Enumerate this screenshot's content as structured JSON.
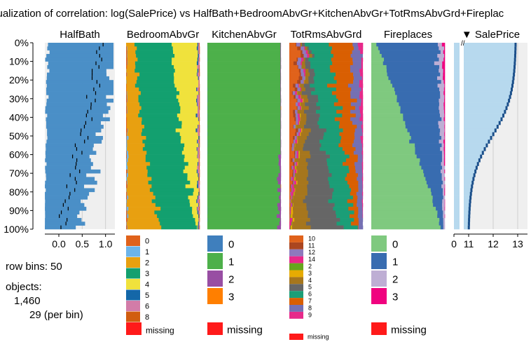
{
  "chart_data": {
    "type": "tableplot",
    "title": "sualization of correlation: log(SalePrice) vs HalfBath+BedroomAbvGr+KitchenAbvGr+TotRmsAbvGrd+Fireplac",
    "row_bins": 50,
    "objects": "1,460",
    "per_bin": "29 (per bin)",
    "row_bins_label": "row bins:",
    "objects_label": "objects:",
    "y_ticks": [
      "0%",
      "10%",
      "20%",
      "30%",
      "40%",
      "50%",
      "60%",
      "70%",
      "80%",
      "90%",
      "100%"
    ],
    "sort_column": "SalePrice",
    "sort_marker": "▼",
    "columns": [
      {
        "name": "HalfBath",
        "kind": "numeric",
        "x_ticks": [
          "0.0",
          "0.5",
          "1.0"
        ],
        "xlim": [
          -0.3,
          1.2
        ],
        "color": "#4a8fc7",
        "mean_top": 0.95,
        "mean_bottom": 0.08
      },
      {
        "name": "BedroomAbvGr",
        "kind": "categorical",
        "legend": [
          {
            "label": "0",
            "color": "#e0621b"
          },
          {
            "label": "1",
            "color": "#6cb4ea"
          },
          {
            "label": "2",
            "color": "#e8a010"
          },
          {
            "label": "3",
            "color": "#13a06f"
          },
          {
            "label": "4",
            "color": "#f0e23c"
          },
          {
            "label": "5",
            "color": "#1467a8"
          },
          {
            "label": "6",
            "color": "#d27ca8"
          },
          {
            "label": "8",
            "color": "#d15d10"
          }
        ],
        "missing_label": "missing"
      },
      {
        "name": "KitchenAbvGr",
        "kind": "categorical",
        "legend": [
          {
            "label": "0",
            "color": "#3f7fbd"
          },
          {
            "label": "1",
            "color": "#4db04a"
          },
          {
            "label": "2",
            "color": "#984ea3"
          },
          {
            "label": "3",
            "color": "#ff7f00"
          }
        ],
        "missing_label": "missing"
      },
      {
        "name": "TotRmsAbvGrd",
        "kind": "categorical",
        "legend": [
          {
            "label": "10",
            "color": "#e0621b"
          },
          {
            "label": "11",
            "color": "#ab4620"
          },
          {
            "label": "12",
            "color": "#8e79bd"
          },
          {
            "label": "14",
            "color": "#e7298a"
          },
          {
            "label": "2",
            "color": "#66a61e"
          },
          {
            "label": "3",
            "color": "#e6ab02"
          },
          {
            "label": "4",
            "color": "#a6761d"
          },
          {
            "label": "5",
            "color": "#666666"
          },
          {
            "label": "6",
            "color": "#1b9e77"
          },
          {
            "label": "7",
            "color": "#d95f02"
          },
          {
            "label": "8",
            "color": "#7570b3"
          },
          {
            "label": "9",
            "color": "#e7298a"
          }
        ],
        "missing_label": "missing"
      },
      {
        "name": "Fireplaces",
        "kind": "categorical",
        "legend": [
          {
            "label": "0",
            "color": "#7fc97f"
          },
          {
            "label": "1",
            "color": "#386cb0"
          },
          {
            "label": "2",
            "color": "#beaed4"
          },
          {
            "label": "3",
            "color": "#f0027f"
          }
        ],
        "missing_label": "missing"
      },
      {
        "name": "SalePrice",
        "kind": "numeric",
        "x_ticks": [
          "0",
          "11",
          "12",
          "13"
        ],
        "xlim": [
          10.4,
          13.4
        ],
        "color": "#b7d9ee",
        "log_top": 12.95,
        "log_bottom": 11.0
      }
    ],
    "missing_color": "#ff1a1a"
  }
}
